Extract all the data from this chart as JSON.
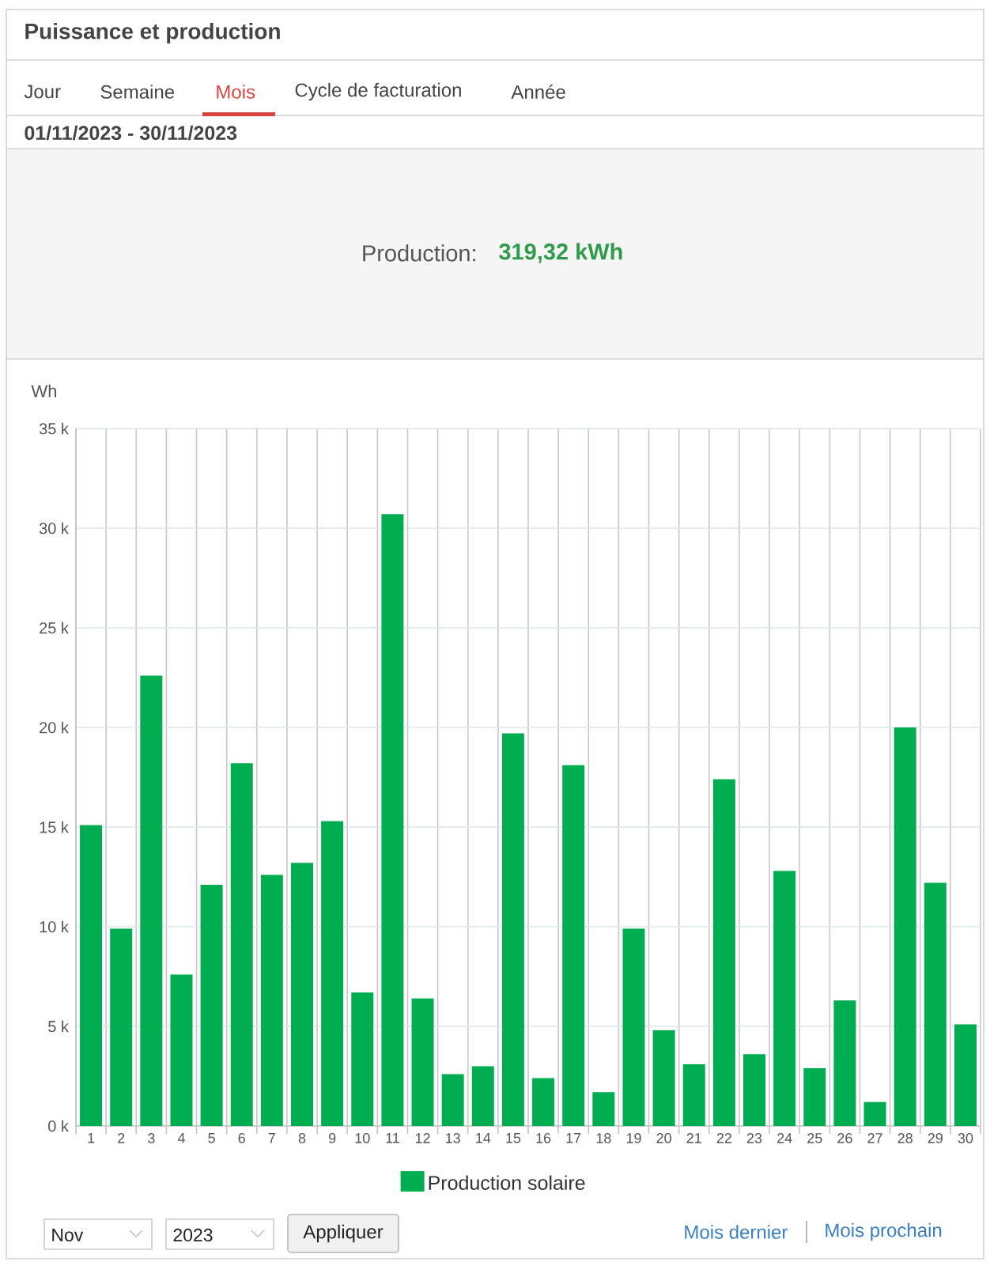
{
  "chart_data": {
    "type": "bar",
    "title": "Puissance et production",
    "subtitle": "01/11/2023 - 30/11/2023",
    "ylabel": "Wh",
    "categories": [
      "1",
      "2",
      "3",
      "4",
      "5",
      "6",
      "7",
      "8",
      "9",
      "10",
      "11",
      "12",
      "13",
      "14",
      "15",
      "16",
      "17",
      "18",
      "19",
      "20",
      "21",
      "22",
      "23",
      "24",
      "25",
      "26",
      "27",
      "28",
      "29",
      "30"
    ],
    "series": [
      {
        "name": "Production solaire",
        "color": "#00ad50",
        "values": [
          15100,
          9900,
          22600,
          7600,
          12100,
          18200,
          12600,
          13200,
          15300,
          6700,
          30700,
          6400,
          2600,
          3000,
          19700,
          2400,
          18100,
          1700,
          9900,
          4800,
          3100,
          17400,
          3600,
          12800,
          2900,
          6300,
          1200,
          20000,
          12200,
          5100
        ]
      }
    ],
    "ylim": [
      0,
      35000
    ],
    "yticks": [
      {
        "value": 0,
        "label": "0 k"
      },
      {
        "value": 5000,
        "label": "5 k"
      },
      {
        "value": 10000,
        "label": "10 k"
      },
      {
        "value": 15000,
        "label": "15 k"
      },
      {
        "value": 20000,
        "label": "20 k"
      },
      {
        "value": 25000,
        "label": "25 k"
      },
      {
        "value": 30000,
        "label": "30 k"
      },
      {
        "value": 35000,
        "label": "35 k"
      }
    ],
    "grid": true,
    "legend": "bottom",
    "annotations": [
      "Jour",
      "Semaine",
      "Mois",
      "Cycle de facturation",
      "Année",
      "Production:",
      "319,32 kWh",
      "Nov",
      "2023",
      "Appliquer",
      "Mois dernier",
      "Mois prochain"
    ]
  }
}
